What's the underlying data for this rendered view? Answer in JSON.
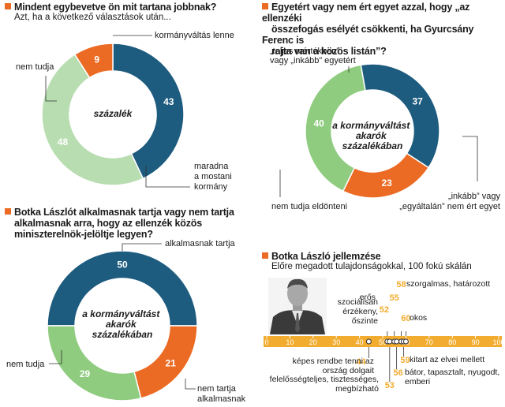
{
  "colors": {
    "dark_blue": "#1d5b7f",
    "orange": "#ec6b24",
    "light_green": "#b7ddb0",
    "mid_green": "#8fcc7f",
    "gold": "#f2ac2f",
    "line": "#333333"
  },
  "panel1": {
    "title": "Mindent egybevetve ön mit tartana jobbnak?",
    "subtitle": "Azt, ha a következő választások után...",
    "center_label": "százalék"
  },
  "panel2": {
    "title_line1": "Egyetért vagy nem ért egyet azzal, hogy „az ellenzéki",
    "title_line2": "összefogás esélyét csökkenti, ha Gyurcsány Ferenc is",
    "title_line3": "rajta van a közös listán”?",
    "center_line1": "a kormányváltást",
    "center_line2": "akarók",
    "center_line3": "százalékában"
  },
  "panel3": {
    "title_line1": "Botka Lászlót alkalmasnak tartja vagy nem tartja",
    "title_line2": "alkalmasnak arra, hogy az ellenzék közös",
    "title_line3": "miniszterelnök-jelöltje legyen?",
    "center_line1": "a kormányváltást",
    "center_line2": "akarók",
    "center_line3": "százalékában"
  },
  "panel4": {
    "title": "Botka László jellemzése",
    "subtitle": "Előre megadott tulajdonságokkal, 100 fokú skálán"
  },
  "chart_data": [
    {
      "type": "pie",
      "title": "Mindent egybevetve ön mit tartana jobbnak?",
      "subtitle": "Azt, ha a következő választások után...",
      "slices": [
        {
          "label": "kormányváltás lenne",
          "value": 43,
          "color": "#1d5b7f"
        },
        {
          "label": "maradna a mostani kormány",
          "value": 48,
          "color": "#b7ddb0"
        },
        {
          "label": "nem tudja",
          "value": 9,
          "color": "#ec6b24"
        }
      ]
    },
    {
      "type": "pie",
      "title": "Egyetért vagy nem ért egyet azzal, hogy „az ellenzéki összefogás esélyét csökkenti, ha Gyurcsány Ferenc is rajta van a közös listán”?",
      "slices": [
        {
          "label": "„teljes mértékben” vagy „inkább” egyetért",
          "value": 37,
          "color": "#1d5b7f"
        },
        {
          "label": "„inkább” vagy „egyáltalán” nem ért egyet",
          "value": 23,
          "color": "#ec6b24"
        },
        {
          "label": "nem tudja eldönteni",
          "value": 40,
          "color": "#8fcc7f"
        }
      ]
    },
    {
      "type": "pie",
      "title": "Botka Lászlót alkalmasnak tartja vagy nem tartja alkalmasnak arra, hogy az ellenzék közös miniszterelnök-jelöltje legyen?",
      "slices": [
        {
          "label": "alkalmasnak tartja",
          "value": 50,
          "color": "#1d5b7f"
        },
        {
          "label": "nem tartja alkalmasnak",
          "value": 21,
          "color": "#ec6b24"
        },
        {
          "label": "nem tudja",
          "value": 29,
          "color": "#8fcc7f"
        }
      ]
    },
    {
      "type": "scatter",
      "title": "Botka László jellemzése",
      "subtitle": "Előre megadott tulajdonságokkal, 100 fokú skálán",
      "xlim": [
        0,
        100
      ],
      "ticks": [
        0,
        10,
        20,
        30,
        40,
        50,
        60,
        70,
        80,
        90,
        100
      ],
      "points": [
        {
          "value": 44,
          "label": [
            "képes rendbe tenni az",
            "ország dolgait"
          ]
        },
        {
          "value": 52,
          "label": [
            "szociálisan",
            "érzékeny,",
            "őszinte"
          ]
        },
        {
          "value": 53,
          "label": [
            "felelősségteljes, tisztességes,",
            "megbízható"
          ]
        },
        {
          "value": 55,
          "label": [
            "erős"
          ]
        },
        {
          "value": 56,
          "label": [
            "bátor, tapasztalt, nyugodt,",
            "emberi"
          ]
        },
        {
          "value": 58,
          "label": [
            "szorgalmas, határozott"
          ]
        },
        {
          "value": 59,
          "label": [
            "kitart az elvei mellett"
          ]
        },
        {
          "value": 60,
          "label": [
            "okos"
          ]
        }
      ]
    }
  ]
}
